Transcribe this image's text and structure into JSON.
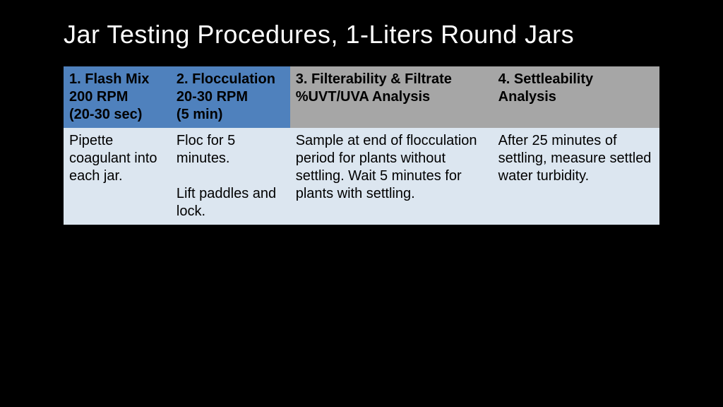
{
  "slide": {
    "title": "Jar Testing Procedures, 1-Liters Round Jars",
    "background_color": "#000000",
    "title_color": "#ffffff",
    "title_fontsize": 36
  },
  "table": {
    "type": "table",
    "column_widths_pct": [
      18,
      20,
      34,
      28
    ],
    "header_colors": [
      "#4f81bd",
      "#4f81bd",
      "#a6a6a6",
      "#a6a6a6"
    ],
    "body_color": "#dce6f0",
    "header_font_weight": "bold",
    "cell_fontsize": 20,
    "columns": [
      "1. Flash Mix\n200 RPM\n(20-30 sec)",
      "2. Flocculation\n20-30 RPM\n(5 min)",
      "3. Filterability & Filtrate %UVT/UVA Analysis",
      "4. Settleability Analysis"
    ],
    "rows": [
      [
        "Pipette coagulant into each jar.",
        "Floc for 5 minutes.\n\nLift paddles and lock.",
        "Sample at end of flocculation period for plants without settling. Wait 5 minutes for plants with settling.",
        "After 25 minutes of settling, measure settled water turbidity."
      ]
    ]
  }
}
